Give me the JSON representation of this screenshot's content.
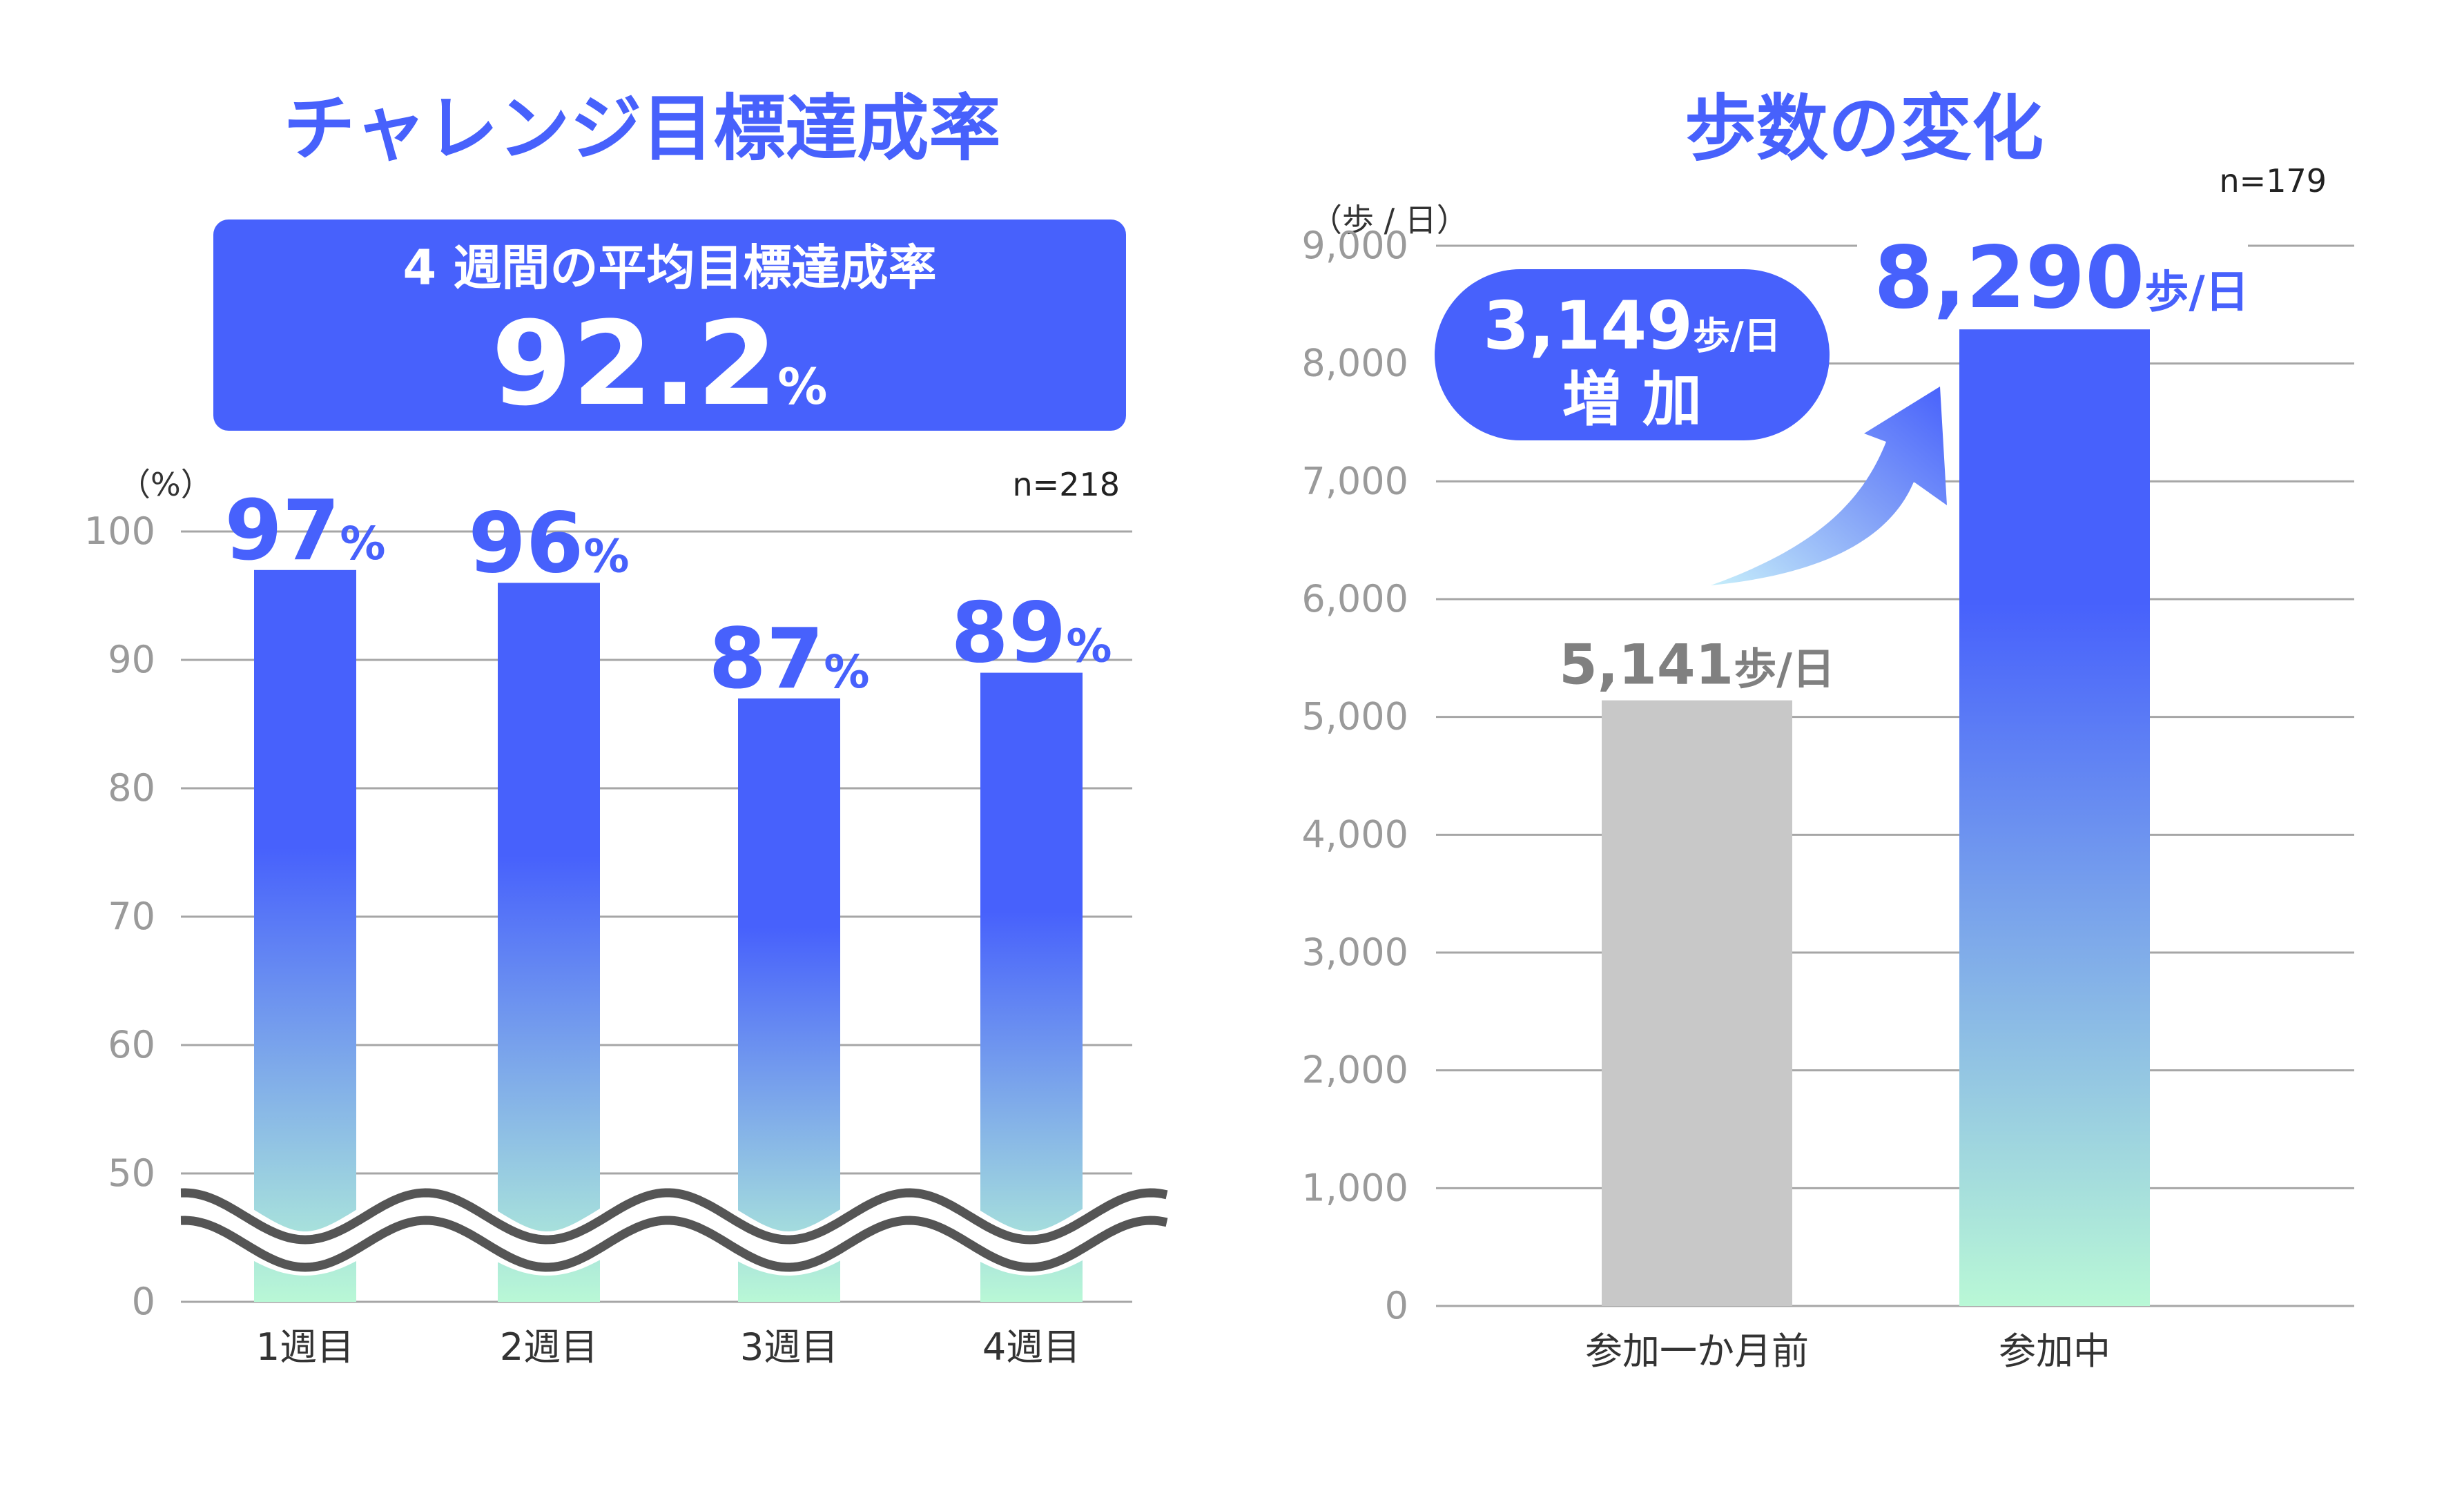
{
  "colors": {
    "accent": "#4761fc",
    "bar_top": "#4761fc",
    "bar_bottom": "#b9f8d6",
    "gray_bar": "#c8c8c8",
    "gray_text": "#808080",
    "axis_text": "#9a9a9a",
    "grid": "#a6a6a6",
    "wave": "#555555"
  },
  "left_panel": {
    "title": "チャレンジ目標達成率",
    "banner_line1": "4 週間の平均目標達成率",
    "banner_value": "92.2",
    "banner_unit": "%",
    "unit_label": "（%）",
    "n_label": "n=218"
  },
  "right_panel": {
    "title": "歩数の変化",
    "unit_label": "（歩 / 日）",
    "n_label": "n=179",
    "callout_line1_num": "3,149",
    "callout_line1_unit": "歩/日",
    "callout_line2": "増 加"
  },
  "chart_data": [
    {
      "type": "bar",
      "title": "チャレンジ目標達成率",
      "categories": [
        "1週目",
        "2週目",
        "3週目",
        "4週目"
      ],
      "values": [
        97,
        96,
        87,
        89
      ],
      "value_labels": [
        "97",
        "96",
        "87",
        "89"
      ],
      "value_unit": "%",
      "ylabel": "（%）",
      "yticks": [
        "0",
        "50",
        "60",
        "70",
        "80",
        "90",
        "100"
      ],
      "ytick_values": [
        40,
        50,
        60,
        70,
        80,
        90,
        100
      ],
      "ylim": [
        40,
        100
      ],
      "axis_break": true,
      "grid": true,
      "legend": "none"
    },
    {
      "type": "bar",
      "title": "歩数の変化",
      "categories": [
        "参加一か月前",
        "参加中"
      ],
      "values": [
        5141,
        8290
      ],
      "value_labels": [
        "5,141",
        "8,290"
      ],
      "value_unit": "歩/日",
      "ylabel": "（歩 / 日）",
      "yticks": [
        "0",
        "1,000",
        "2,000",
        "3,000",
        "4,000",
        "5,000",
        "6,000",
        "7,000",
        "8,000",
        "9,000"
      ],
      "ytick_values": [
        0,
        1000,
        2000,
        3000,
        4000,
        5000,
        6000,
        7000,
        8000,
        9000
      ],
      "ylim": [
        0,
        9000
      ],
      "grid": true,
      "legend": "none"
    }
  ]
}
